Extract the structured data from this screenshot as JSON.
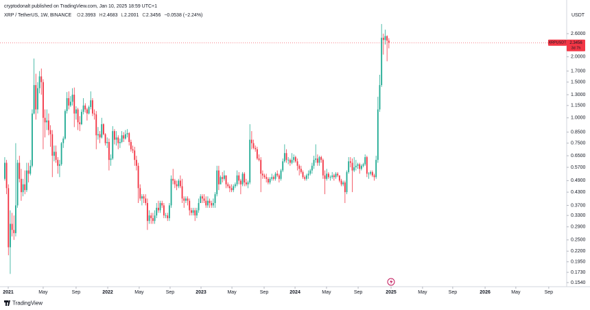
{
  "header": {
    "byline": "cryptodonalt published on TradingView.com, Jan 10, 2025 18:59 UTC+1"
  },
  "footer": {
    "brand": "TradingView"
  },
  "chart_data": {
    "type": "candlestick",
    "symbol": "XRP / TetherUS, 1W, BINANCE",
    "legend": [
      {
        "label": "O",
        "value": "2.3993"
      },
      {
        "label": "H",
        "value": "2.4683"
      },
      {
        "label": "L",
        "value": "2.2001"
      },
      {
        "label": "C",
        "value": "2.3456"
      }
    ],
    "change": "−0.0538 (−2.24%)",
    "currency": "USDT",
    "price_tag": {
      "ticker": "XRPUSDT",
      "price": "2.3456",
      "countdown": "3d 7h"
    },
    "up_color": "#22ab94",
    "down_color": "#f23645",
    "log_scale": true,
    "grid": false,
    "xlim": [
      -2.6,
      307.2
    ],
    "xticks": [
      {
        "value": 1.9,
        "label": "2021"
      },
      {
        "value": 21.0,
        "label": "May"
      },
      {
        "value": 39.0,
        "label": "Sep"
      },
      {
        "value": 56.3,
        "label": "2022"
      },
      {
        "value": 73.5,
        "label": "May"
      },
      {
        "value": 90.4,
        "label": "Sep"
      },
      {
        "value": 107.3,
        "label": "2023"
      },
      {
        "value": 124.2,
        "label": "May"
      },
      {
        "value": 141.8,
        "label": "Sep"
      },
      {
        "value": 158.7,
        "label": "2024"
      },
      {
        "value": 175.9,
        "label": "May"
      },
      {
        "value": 193.2,
        "label": "Sep"
      },
      {
        "value": 211.2,
        "label": "2025"
      },
      {
        "value": 228.4,
        "label": "May"
      },
      {
        "value": 244.9,
        "label": "Sep"
      },
      {
        "value": 262.6,
        "label": "2026"
      },
      {
        "value": 279.4,
        "label": "May"
      },
      {
        "value": 297.4,
        "label": "Sep"
      }
    ],
    "ylim": [
      0.147,
      3.81
    ],
    "yticks": [
      {
        "value": 2.6,
        "label": "2.6000"
      },
      {
        "value": 2.0,
        "label": "2.0000"
      },
      {
        "value": 1.7,
        "label": "1.7000"
      },
      {
        "value": 1.5,
        "label": "1.5000"
      },
      {
        "value": 1.3,
        "label": "1.3000"
      },
      {
        "value": 1.15,
        "label": "1.1500"
      },
      {
        "value": 1.0,
        "label": "1.0000"
      },
      {
        "value": 0.85,
        "label": "0.8500"
      },
      {
        "value": 0.75,
        "label": "0.7500"
      },
      {
        "value": 0.65,
        "label": "0.6500"
      },
      {
        "value": 0.57,
        "label": "0.5700"
      },
      {
        "value": 0.49,
        "label": "0.4900"
      },
      {
        "value": 0.43,
        "label": "0.4300"
      },
      {
        "value": 0.37,
        "label": "0.3700"
      },
      {
        "value": 0.33,
        "label": "0.3300"
      },
      {
        "value": 0.29,
        "label": "0.2900"
      },
      {
        "value": 0.25,
        "label": "0.2500"
      },
      {
        "value": 0.22,
        "label": "0.2200"
      },
      {
        "value": 0.195,
        "label": "0.1950"
      },
      {
        "value": 0.173,
        "label": "0.1730"
      },
      {
        "value": 0.154,
        "label": "0.1540"
      }
    ],
    "candles": [
      [
        0.5,
        0.64,
        0.49,
        0.6
      ],
      [
        0.6,
        0.62,
        0.42,
        0.45
      ],
      [
        0.45,
        0.47,
        0.21,
        0.23
      ],
      [
        0.23,
        0.35,
        0.17,
        0.3
      ],
      [
        0.3,
        0.34,
        0.26,
        0.28
      ],
      [
        0.28,
        0.33,
        0.25,
        0.27
      ],
      [
        0.27,
        0.75,
        0.26,
        0.37
      ],
      [
        0.37,
        0.62,
        0.36,
        0.6
      ],
      [
        0.6,
        0.65,
        0.48,
        0.5
      ],
      [
        0.5,
        0.56,
        0.39,
        0.43
      ],
      [
        0.43,
        0.5,
        0.41,
        0.47
      ],
      [
        0.47,
        0.55,
        0.42,
        0.44
      ],
      [
        0.44,
        0.6,
        0.43,
        0.55
      ],
      [
        0.55,
        0.6,
        0.48,
        0.53
      ],
      [
        0.53,
        0.62,
        0.52,
        0.58
      ],
      [
        0.58,
        1.1,
        0.57,
        1.05
      ],
      [
        1.05,
        1.96,
        1.04,
        1.45
      ],
      [
        1.45,
        1.65,
        0.98,
        1.1
      ],
      [
        1.1,
        1.5,
        1.05,
        1.4
      ],
      [
        1.4,
        1.7,
        1.32,
        1.6
      ],
      [
        1.6,
        1.75,
        1.3,
        1.5
      ],
      [
        1.5,
        1.55,
        0.7,
        1.0
      ],
      [
        1.0,
        1.1,
        0.8,
        0.95
      ],
      [
        0.95,
        1.1,
        0.87,
        0.97
      ],
      [
        0.97,
        1.05,
        0.82,
        0.87
      ],
      [
        0.87,
        0.92,
        0.72,
        0.83
      ],
      [
        0.83,
        0.87,
        0.51,
        0.65
      ],
      [
        0.65,
        0.73,
        0.61,
        0.68
      ],
      [
        0.68,
        0.73,
        0.6,
        0.62
      ],
      [
        0.62,
        0.64,
        0.53,
        0.58
      ],
      [
        0.58,
        0.62,
        0.51,
        0.59
      ],
      [
        0.59,
        0.76,
        0.58,
        0.75
      ],
      [
        0.75,
        0.81,
        0.71,
        0.79
      ],
      [
        0.79,
        1.1,
        0.78,
        1.08
      ],
      [
        1.08,
        1.34,
        1.05,
        1.25
      ],
      [
        1.25,
        1.35,
        1.1,
        1.15
      ],
      [
        1.15,
        1.28,
        1.13,
        1.2
      ],
      [
        1.2,
        1.4,
        1.15,
        1.3
      ],
      [
        1.3,
        1.41,
        0.9,
        1.05
      ],
      [
        1.05,
        1.14,
        0.98,
        1.1
      ],
      [
        1.1,
        1.12,
        0.87,
        0.95
      ],
      [
        0.95,
        1.02,
        0.86,
        0.93
      ],
      [
        0.93,
        1.1,
        0.92,
        1.07
      ],
      [
        1.07,
        1.25,
        1.04,
        1.15
      ],
      [
        1.15,
        1.18,
        1.06,
        1.1
      ],
      [
        1.1,
        1.12,
        0.97,
        1.05
      ],
      [
        1.05,
        1.15,
        1.04,
        1.13
      ],
      [
        1.13,
        1.35,
        1.1,
        1.22
      ],
      [
        1.22,
        1.25,
        1.02,
        1.05
      ],
      [
        1.05,
        1.1,
        0.98,
        1.04
      ],
      [
        1.04,
        1.08,
        0.7,
        0.82
      ],
      [
        0.82,
        0.9,
        0.78,
        0.83
      ],
      [
        0.83,
        0.86,
        0.75,
        0.8
      ],
      [
        0.8,
        1.0,
        0.79,
        0.93
      ],
      [
        0.93,
        0.94,
        0.82,
        0.83
      ],
      [
        0.83,
        0.84,
        0.73,
        0.75
      ],
      [
        0.75,
        0.8,
        0.71,
        0.76
      ],
      [
        0.76,
        0.79,
        0.55,
        0.62
      ],
      [
        0.62,
        0.66,
        0.58,
        0.63
      ],
      [
        0.63,
        0.91,
        0.62,
        0.86
      ],
      [
        0.86,
        0.88,
        0.74,
        0.78
      ],
      [
        0.78,
        0.86,
        0.73,
        0.8
      ],
      [
        0.8,
        0.82,
        0.7,
        0.75
      ],
      [
        0.75,
        0.79,
        0.71,
        0.76
      ],
      [
        0.76,
        0.86,
        0.75,
        0.82
      ],
      [
        0.82,
        0.85,
        0.76,
        0.79
      ],
      [
        0.79,
        0.87,
        0.78,
        0.83
      ],
      [
        0.83,
        0.88,
        0.8,
        0.84
      ],
      [
        0.84,
        0.85,
        0.73,
        0.76
      ],
      [
        0.76,
        0.78,
        0.68,
        0.7
      ],
      [
        0.7,
        0.73,
        0.67,
        0.69
      ],
      [
        0.69,
        0.72,
        0.58,
        0.62
      ],
      [
        0.62,
        0.65,
        0.55,
        0.58
      ],
      [
        0.58,
        0.6,
        0.38,
        0.45
      ],
      [
        0.45,
        0.47,
        0.39,
        0.4
      ],
      [
        0.4,
        0.42,
        0.37,
        0.41
      ],
      [
        0.41,
        0.42,
        0.38,
        0.4
      ],
      [
        0.4,
        0.42,
        0.37,
        0.38
      ],
      [
        0.38,
        0.4,
        0.28,
        0.31
      ],
      [
        0.31,
        0.35,
        0.3,
        0.33
      ],
      [
        0.33,
        0.34,
        0.3,
        0.32
      ],
      [
        0.32,
        0.34,
        0.3,
        0.31
      ],
      [
        0.31,
        0.35,
        0.3,
        0.33
      ],
      [
        0.33,
        0.38,
        0.32,
        0.36
      ],
      [
        0.36,
        0.39,
        0.34,
        0.35
      ],
      [
        0.35,
        0.39,
        0.34,
        0.38
      ],
      [
        0.38,
        0.39,
        0.36,
        0.37
      ],
      [
        0.37,
        0.38,
        0.32,
        0.33
      ],
      [
        0.33,
        0.34,
        0.32,
        0.33
      ],
      [
        0.33,
        0.34,
        0.31,
        0.32
      ],
      [
        0.32,
        0.38,
        0.31,
        0.37
      ],
      [
        0.37,
        0.52,
        0.36,
        0.5
      ],
      [
        0.5,
        0.56,
        0.47,
        0.49
      ],
      [
        0.49,
        0.5,
        0.45,
        0.47
      ],
      [
        0.47,
        0.49,
        0.44,
        0.46
      ],
      [
        0.46,
        0.5,
        0.45,
        0.49
      ],
      [
        0.49,
        0.52,
        0.45,
        0.46
      ],
      [
        0.46,
        0.5,
        0.38,
        0.4
      ],
      [
        0.4,
        0.41,
        0.36,
        0.39
      ],
      [
        0.39,
        0.41,
        0.38,
        0.4
      ],
      [
        0.4,
        0.41,
        0.37,
        0.39
      ],
      [
        0.39,
        0.4,
        0.33,
        0.35
      ],
      [
        0.35,
        0.36,
        0.33,
        0.34
      ],
      [
        0.34,
        0.36,
        0.33,
        0.35
      ],
      [
        0.35,
        0.36,
        0.31,
        0.33
      ],
      [
        0.33,
        0.36,
        0.32,
        0.35
      ],
      [
        0.35,
        0.4,
        0.34,
        0.38
      ],
      [
        0.38,
        0.42,
        0.38,
        0.41
      ],
      [
        0.41,
        0.42,
        0.38,
        0.4
      ],
      [
        0.4,
        0.42,
        0.38,
        0.39
      ],
      [
        0.39,
        0.41,
        0.36,
        0.37
      ],
      [
        0.37,
        0.41,
        0.36,
        0.39
      ],
      [
        0.39,
        0.4,
        0.36,
        0.38
      ],
      [
        0.38,
        0.39,
        0.36,
        0.37
      ],
      [
        0.37,
        0.4,
        0.36,
        0.38
      ],
      [
        0.38,
        0.43,
        0.36,
        0.42
      ],
      [
        0.42,
        0.58,
        0.41,
        0.55
      ],
      [
        0.55,
        0.58,
        0.44,
        0.47
      ],
      [
        0.47,
        0.52,
        0.47,
        0.51
      ],
      [
        0.51,
        0.54,
        0.48,
        0.5
      ],
      [
        0.5,
        0.55,
        0.49,
        0.52
      ],
      [
        0.52,
        0.52,
        0.45,
        0.47
      ],
      [
        0.47,
        0.48,
        0.45,
        0.46
      ],
      [
        0.46,
        0.47,
        0.43,
        0.45
      ],
      [
        0.45,
        0.47,
        0.43,
        0.44
      ],
      [
        0.44,
        0.47,
        0.43,
        0.46
      ],
      [
        0.46,
        0.48,
        0.45,
        0.47
      ],
      [
        0.47,
        0.55,
        0.46,
        0.52
      ],
      [
        0.52,
        0.54,
        0.47,
        0.49
      ],
      [
        0.49,
        0.5,
        0.42,
        0.47
      ],
      [
        0.47,
        0.54,
        0.46,
        0.53
      ],
      [
        0.53,
        0.54,
        0.46,
        0.48
      ],
      [
        0.48,
        0.5,
        0.46,
        0.47
      ],
      [
        0.47,
        0.49,
        0.45,
        0.48
      ],
      [
        0.48,
        0.93,
        0.47,
        0.78
      ],
      [
        0.78,
        0.86,
        0.7,
        0.75
      ],
      [
        0.75,
        0.78,
        0.7,
        0.71
      ],
      [
        0.71,
        0.73,
        0.68,
        0.7
      ],
      [
        0.7,
        0.72,
        0.62,
        0.63
      ],
      [
        0.63,
        0.66,
        0.61,
        0.62
      ],
      [
        0.62,
        0.64,
        0.43,
        0.53
      ],
      [
        0.53,
        0.55,
        0.5,
        0.52
      ],
      [
        0.52,
        0.53,
        0.5,
        0.51
      ],
      [
        0.51,
        0.53,
        0.48,
        0.5
      ],
      [
        0.5,
        0.51,
        0.47,
        0.48
      ],
      [
        0.48,
        0.51,
        0.47,
        0.5
      ],
      [
        0.5,
        0.53,
        0.49,
        0.51
      ],
      [
        0.51,
        0.52,
        0.49,
        0.5
      ],
      [
        0.5,
        0.54,
        0.49,
        0.53
      ],
      [
        0.53,
        0.55,
        0.51,
        0.52
      ],
      [
        0.52,
        0.53,
        0.48,
        0.5
      ],
      [
        0.5,
        0.56,
        0.49,
        0.55
      ],
      [
        0.55,
        0.63,
        0.54,
        0.61
      ],
      [
        0.61,
        0.74,
        0.6,
        0.67
      ],
      [
        0.67,
        0.7,
        0.6,
        0.62
      ],
      [
        0.62,
        0.64,
        0.59,
        0.62
      ],
      [
        0.62,
        0.63,
        0.58,
        0.6
      ],
      [
        0.6,
        0.67,
        0.59,
        0.62
      ],
      [
        0.62,
        0.66,
        0.6,
        0.64
      ],
      [
        0.64,
        0.65,
        0.6,
        0.61
      ],
      [
        0.61,
        0.63,
        0.55,
        0.58
      ],
      [
        0.58,
        0.59,
        0.52,
        0.56
      ],
      [
        0.56,
        0.58,
        0.53,
        0.54
      ],
      [
        0.54,
        0.55,
        0.5,
        0.51
      ],
      [
        0.51,
        0.52,
        0.49,
        0.5
      ],
      [
        0.5,
        0.53,
        0.49,
        0.52
      ],
      [
        0.52,
        0.55,
        0.5,
        0.53
      ],
      [
        0.53,
        0.56,
        0.52,
        0.55
      ],
      [
        0.55,
        0.6,
        0.53,
        0.58
      ],
      [
        0.58,
        0.65,
        0.56,
        0.62
      ],
      [
        0.62,
        0.74,
        0.6,
        0.63
      ],
      [
        0.63,
        0.66,
        0.58,
        0.6
      ],
      [
        0.6,
        0.65,
        0.58,
        0.64
      ],
      [
        0.64,
        0.65,
        0.6,
        0.62
      ],
      [
        0.62,
        0.63,
        0.5,
        0.52
      ],
      [
        0.52,
        0.55,
        0.42,
        0.5
      ],
      [
        0.5,
        0.56,
        0.49,
        0.53
      ],
      [
        0.53,
        0.54,
        0.5,
        0.51
      ],
      [
        0.51,
        0.52,
        0.49,
        0.51
      ],
      [
        0.51,
        0.54,
        0.5,
        0.52
      ],
      [
        0.52,
        0.53,
        0.49,
        0.51
      ],
      [
        0.51,
        0.54,
        0.5,
        0.53
      ],
      [
        0.53,
        0.54,
        0.51,
        0.52
      ],
      [
        0.52,
        0.52,
        0.48,
        0.49
      ],
      [
        0.49,
        0.5,
        0.46,
        0.47
      ],
      [
        0.47,
        0.49,
        0.46,
        0.48
      ],
      [
        0.48,
        0.49,
        0.38,
        0.43
      ],
      [
        0.43,
        0.55,
        0.42,
        0.54
      ],
      [
        0.54,
        0.64,
        0.53,
        0.61
      ],
      [
        0.61,
        0.64,
        0.57,
        0.6
      ],
      [
        0.6,
        0.63,
        0.43,
        0.55
      ],
      [
        0.55,
        0.64,
        0.54,
        0.57
      ],
      [
        0.57,
        0.62,
        0.55,
        0.58
      ],
      [
        0.58,
        0.6,
        0.56,
        0.59
      ],
      [
        0.59,
        0.6,
        0.53,
        0.56
      ],
      [
        0.56,
        0.59,
        0.55,
        0.58
      ],
      [
        0.58,
        0.6,
        0.57,
        0.59
      ],
      [
        0.59,
        0.66,
        0.58,
        0.64
      ],
      [
        0.64,
        0.65,
        0.51,
        0.53
      ],
      [
        0.53,
        0.54,
        0.5,
        0.53
      ],
      [
        0.53,
        0.55,
        0.52,
        0.54
      ],
      [
        0.54,
        0.55,
        0.51,
        0.52
      ],
      [
        0.52,
        0.53,
        0.49,
        0.51
      ],
      [
        0.51,
        0.65,
        0.5,
        0.62
      ],
      [
        0.62,
        1.27,
        0.6,
        1.1
      ],
      [
        1.1,
        1.63,
        1.07,
        1.45
      ],
      [
        1.45,
        2.9,
        1.42,
        2.48
      ],
      [
        2.48,
        2.6,
        2.05,
        2.42
      ],
      [
        2.42,
        2.72,
        2.3,
        2.53
      ],
      [
        2.53,
        2.55,
        1.9,
        2.4
      ],
      [
        2.3993,
        2.4683,
        2.2001,
        2.3456
      ]
    ]
  }
}
